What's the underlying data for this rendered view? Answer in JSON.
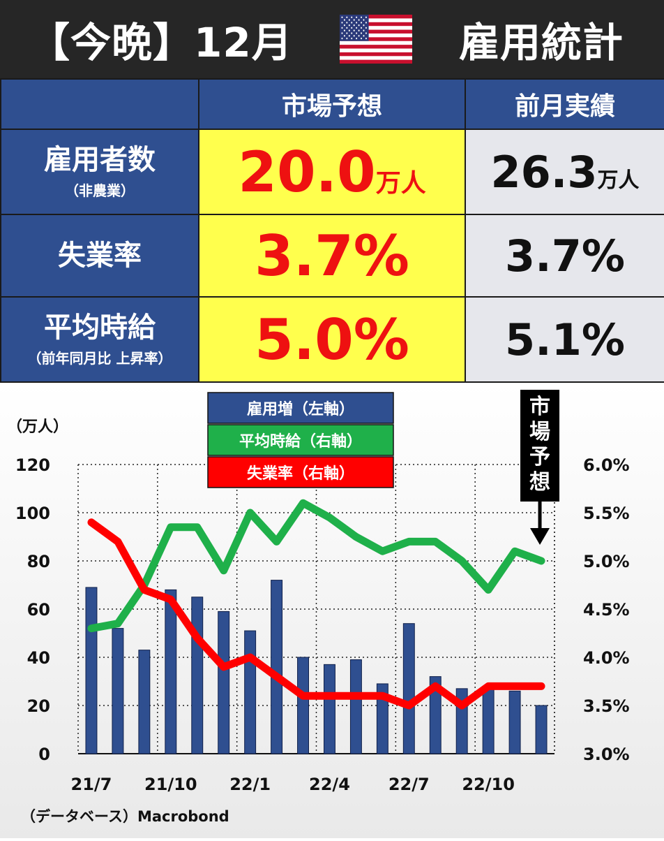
{
  "header": {
    "prefix": "【今晩】12月",
    "title": "雇用統計",
    "flag_icon": "us-flag-icon"
  },
  "table": {
    "columns": [
      "市場予想",
      "前月実績"
    ],
    "rows": [
      {
        "label": "雇用者数",
        "sublabel": "（非農業）",
        "forecast": "20.0",
        "forecast_unit": "万人",
        "previous": "26.3",
        "previous_unit": "万人"
      },
      {
        "label": "失業率",
        "sublabel": "",
        "forecast": "3.7%",
        "forecast_unit": "",
        "previous": "3.7%",
        "previous_unit": ""
      },
      {
        "label": "平均時給",
        "sublabel": "（前年同月比 上昇率）",
        "forecast": "5.0%",
        "forecast_unit": "",
        "previous": "5.1%",
        "previous_unit": ""
      }
    ]
  },
  "colors": {
    "header_bg": "#262626",
    "table_blue": "#2f4f90",
    "highlight_yellow": "#ffff4d",
    "forecast_red": "#ee1111",
    "bar_blue": "#2f4f90",
    "wage_green": "#1fb04a",
    "unemployment_red": "#ff0000"
  },
  "chart_data": {
    "type": "bar",
    "y_left_unit": "（万人）",
    "ylim_left": [
      0,
      120
    ],
    "yticks_left": [
      "0",
      "20",
      "40",
      "60",
      "80",
      "100",
      "120"
    ],
    "ylim_right": [
      3.0,
      6.0
    ],
    "yticks_right": [
      "3.0%",
      "3.5%",
      "4.0%",
      "4.5%",
      "5.0%",
      "5.5%",
      "6.0%"
    ],
    "x": [
      "21/7",
      "21/8",
      "21/9",
      "21/10",
      "21/11",
      "21/12",
      "22/1",
      "22/2",
      "22/3",
      "22/4",
      "22/5",
      "22/6",
      "22/7",
      "22/8",
      "22/9",
      "22/10",
      "22/11",
      "22/12"
    ],
    "xtick_labels": [
      "21/7",
      "21/10",
      "22/1",
      "22/4",
      "22/7",
      "22/10"
    ],
    "grid": true,
    "legend_position": "top-center",
    "series": [
      {
        "name": "雇用増（左軸）",
        "type": "bar",
        "axis": "left",
        "values": [
          69,
          52,
          43,
          68,
          65,
          59,
          51,
          72,
          40,
          37,
          39,
          29,
          54,
          32,
          27,
          27,
          26,
          20
        ]
      },
      {
        "name": "平均時給（右軸）",
        "type": "line",
        "axis": "right",
        "values": [
          4.3,
          4.35,
          4.75,
          5.35,
          5.35,
          4.9,
          5.5,
          5.2,
          5.6,
          5.45,
          5.25,
          5.1,
          5.2,
          5.2,
          5.0,
          4.7,
          5.1,
          5.0
        ]
      },
      {
        "name": "失業率（右軸）",
        "type": "line",
        "axis": "right",
        "values": [
          5.4,
          5.2,
          4.7,
          4.6,
          4.2,
          3.9,
          4.0,
          3.8,
          3.6,
          3.6,
          3.6,
          3.6,
          3.5,
          3.7,
          3.5,
          3.7,
          3.7,
          3.7
        ]
      }
    ],
    "annotation": {
      "text": "市場予想"
    },
    "source": "（データベース）Macrobond"
  }
}
